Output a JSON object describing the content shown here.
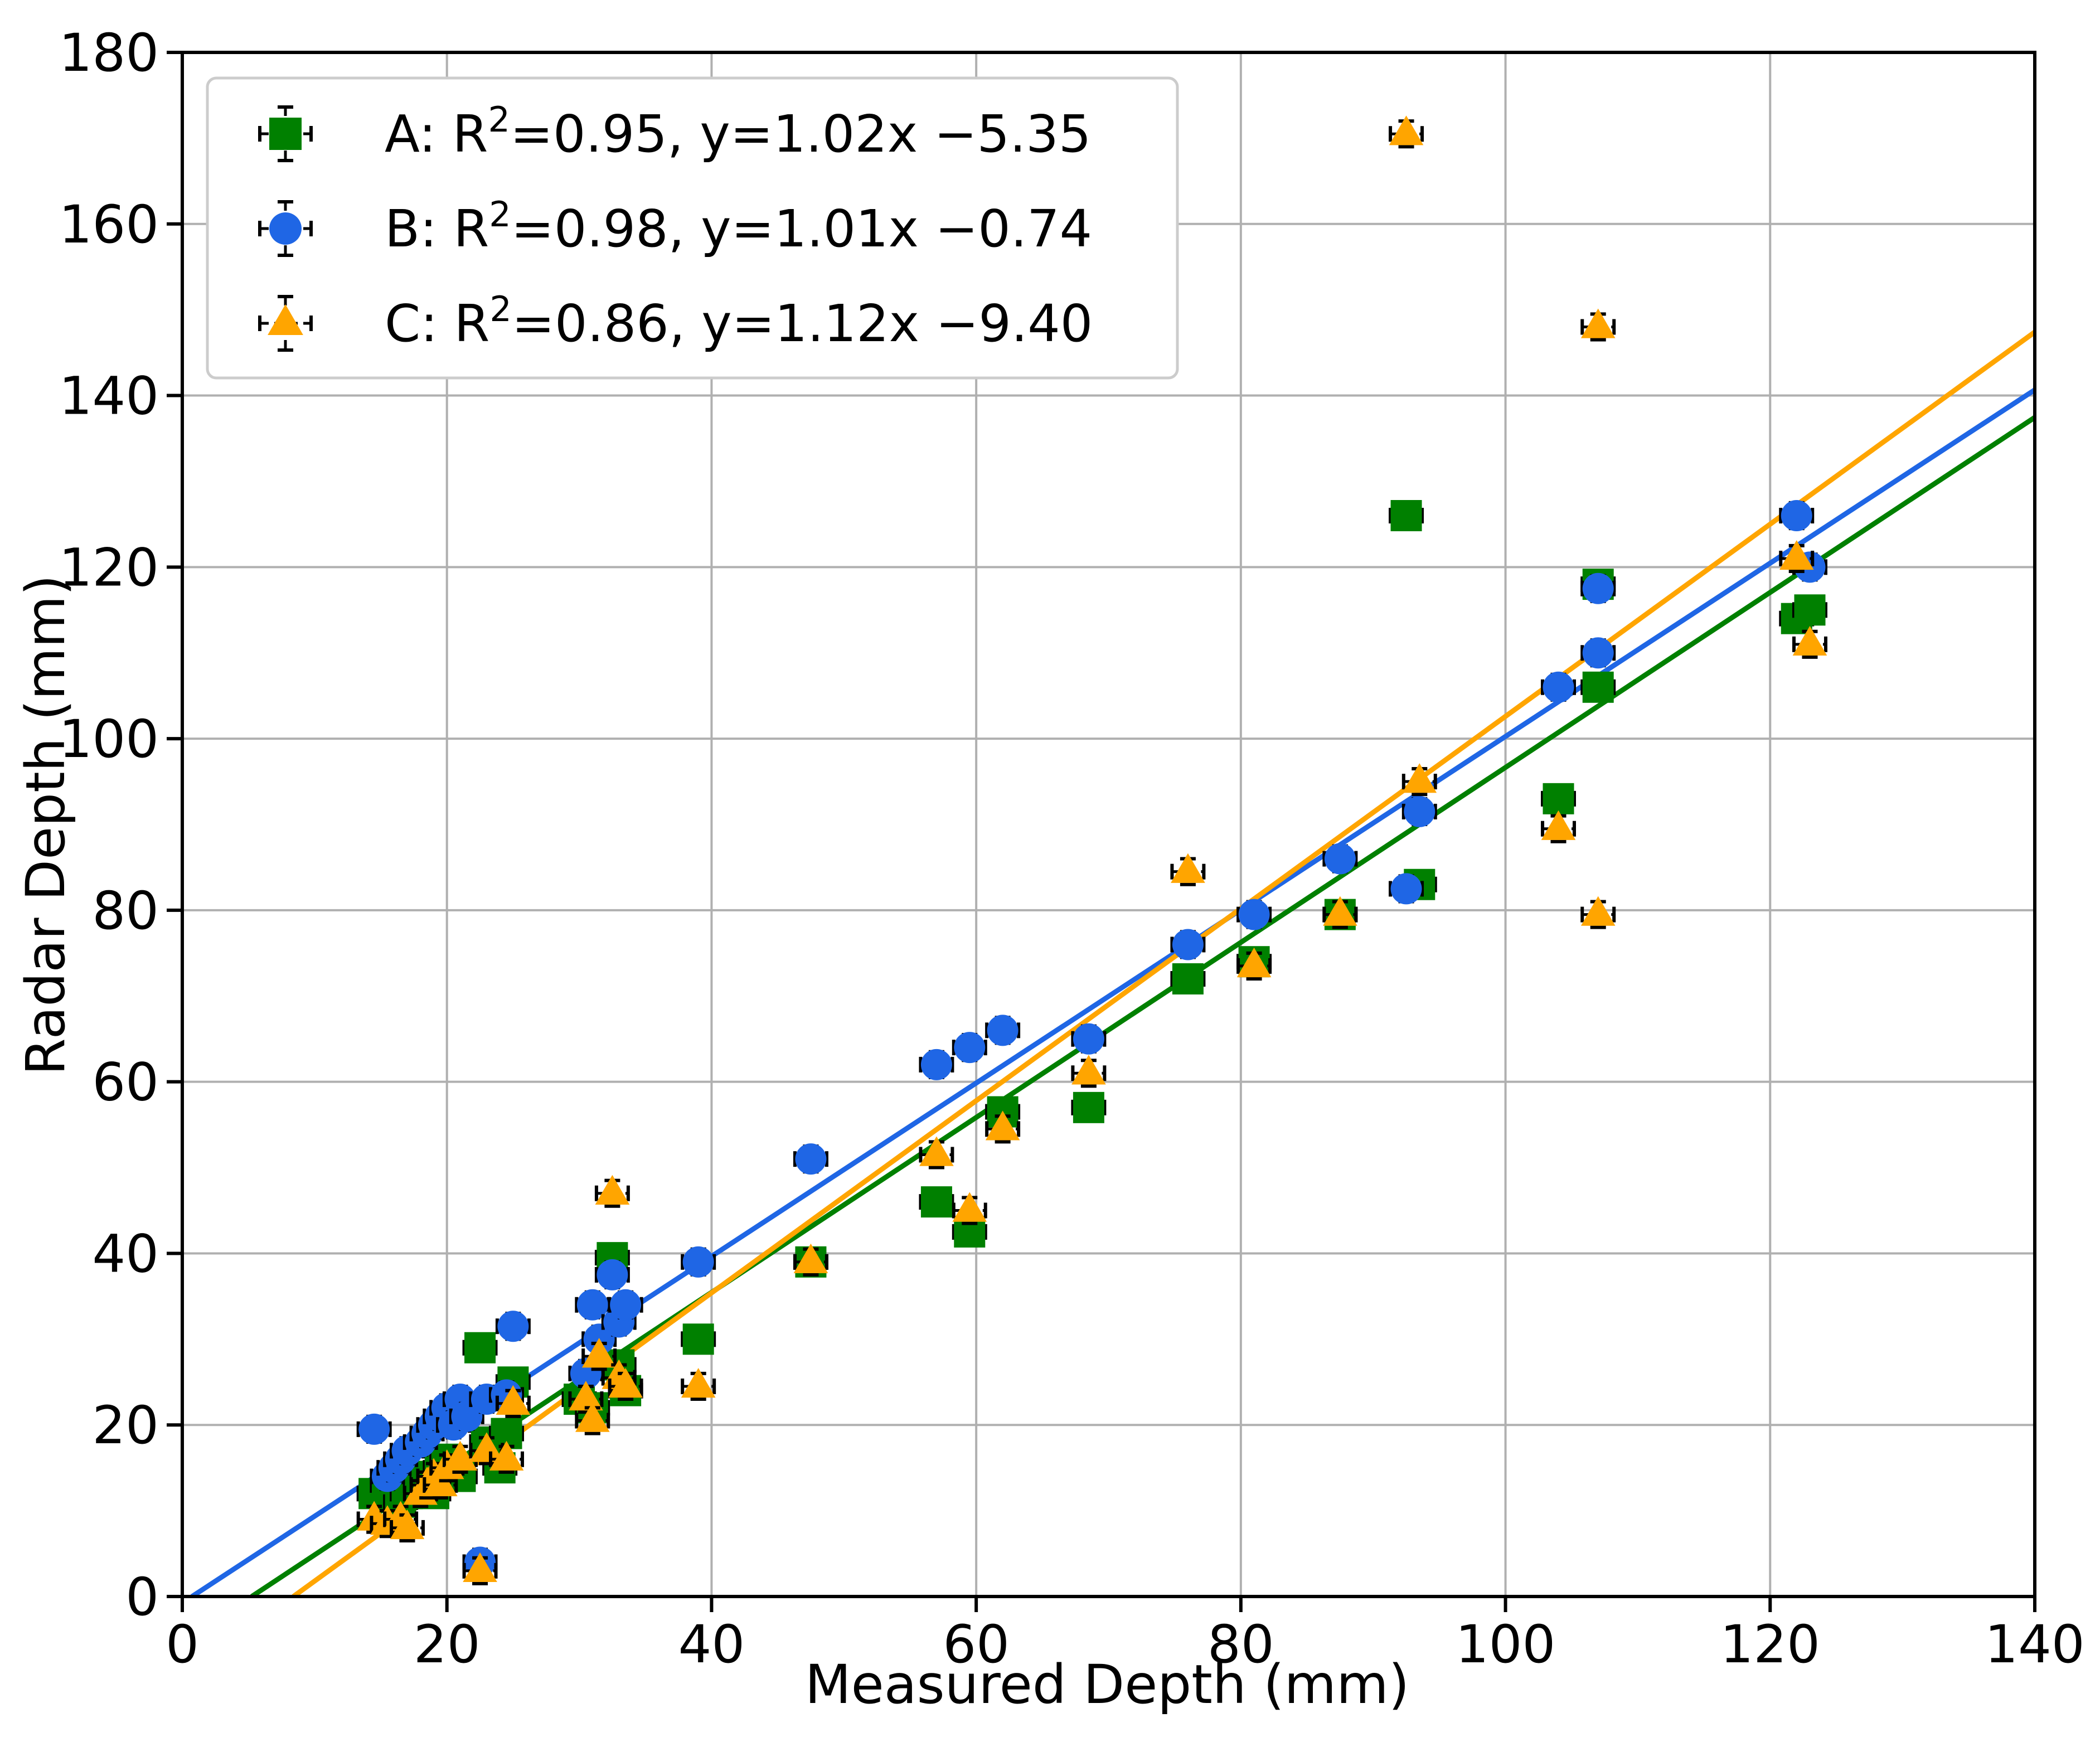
{
  "chart_data": {
    "type": "scatter",
    "title": "",
    "xlabel": "Measured Depth (mm)",
    "ylabel": "Radar Depth (mm)",
    "xlim": [
      0,
      140
    ],
    "ylim": [
      0,
      180
    ],
    "xticks": [
      0,
      20,
      40,
      60,
      80,
      100,
      120,
      140
    ],
    "yticks": [
      0,
      20,
      40,
      60,
      80,
      100,
      120,
      140,
      160,
      180
    ],
    "grid": true,
    "legend_position": "top-left",
    "error_bars": {
      "x": 1.2,
      "y": 1.5
    },
    "series": [
      {
        "name": "A",
        "marker": "square",
        "color": "#008000",
        "legend_label": {
          "prefix": "A: R",
          "sup": "2",
          "suffix": "=0.95, y=1.02x −5.35"
        },
        "fit": {
          "slope": 1.02,
          "intercept": -5.35
        },
        "points": [
          [
            14.5,
            12
          ],
          [
            15.5,
            13
          ],
          [
            16.5,
            11
          ],
          [
            17,
            12
          ],
          [
            18,
            13
          ],
          [
            18.5,
            14
          ],
          [
            19,
            12
          ],
          [
            19.5,
            15
          ],
          [
            20,
            16
          ],
          [
            21,
            14
          ],
          [
            22.5,
            29
          ],
          [
            23,
            18
          ],
          [
            24,
            15
          ],
          [
            24.5,
            19
          ],
          [
            25,
            25
          ],
          [
            30,
            23
          ],
          [
            31,
            22
          ],
          [
            32.5,
            39.5
          ],
          [
            33,
            27
          ],
          [
            33.5,
            24
          ],
          [
            39,
            30
          ],
          [
            47.5,
            39
          ],
          [
            57,
            46
          ],
          [
            59.5,
            42.5
          ],
          [
            62,
            56.5
          ],
          [
            68.5,
            57
          ],
          [
            76,
            72
          ],
          [
            81,
            74
          ],
          [
            87.5,
            79.5
          ],
          [
            92.5,
            126
          ],
          [
            93.5,
            83
          ],
          [
            104,
            93
          ],
          [
            107,
            118
          ],
          [
            107,
            106
          ],
          [
            122,
            114
          ],
          [
            123,
            115
          ]
        ]
      },
      {
        "name": "B",
        "marker": "circle",
        "color": "#1f66e5",
        "legend_label": {
          "prefix": "B: R",
          "sup": "2",
          "suffix": "=0.98, y=1.01x −0.74"
        },
        "fit": {
          "slope": 1.01,
          "intercept": -0.74
        },
        "points": [
          [
            14.5,
            19.5
          ],
          [
            15.5,
            14
          ],
          [
            16,
            15
          ],
          [
            16.5,
            16
          ],
          [
            17,
            17
          ],
          [
            18,
            18
          ],
          [
            18.5,
            19
          ],
          [
            19,
            20
          ],
          [
            19.5,
            21
          ],
          [
            20,
            22
          ],
          [
            20.5,
            20
          ],
          [
            21,
            23
          ],
          [
            21.5,
            21
          ],
          [
            22.5,
            4
          ],
          [
            23,
            23
          ],
          [
            24.5,
            23.5
          ],
          [
            25,
            31.5
          ],
          [
            30.5,
            26
          ],
          [
            31,
            34
          ],
          [
            31.5,
            30
          ],
          [
            32.5,
            37.5
          ],
          [
            33,
            32
          ],
          [
            33.5,
            34
          ],
          [
            39,
            39
          ],
          [
            47.5,
            51
          ],
          [
            57,
            62
          ],
          [
            59.5,
            64
          ],
          [
            62,
            66
          ],
          [
            68.5,
            65
          ],
          [
            76,
            76
          ],
          [
            81,
            79.5
          ],
          [
            87.5,
            86
          ],
          [
            92.5,
            82.5
          ],
          [
            93.5,
            91.5
          ],
          [
            104,
            106
          ],
          [
            107,
            117.5
          ],
          [
            107,
            110
          ],
          [
            122,
            126
          ],
          [
            123,
            120
          ]
        ]
      },
      {
        "name": "C",
        "marker": "triangle",
        "color": "#ffa500",
        "legend_label": {
          "prefix": "C: R",
          "sup": "2",
          "suffix": "=0.86, y=1.12x −9.40"
        },
        "fit": {
          "slope": 1.12,
          "intercept": -9.4
        },
        "points": [
          [
            14.5,
            9
          ],
          [
            15.5,
            8.5
          ],
          [
            16.5,
            9
          ],
          [
            17,
            8
          ],
          [
            18,
            12
          ],
          [
            18.5,
            13
          ],
          [
            19,
            14
          ],
          [
            19.5,
            13
          ],
          [
            20,
            15
          ],
          [
            21,
            16
          ],
          [
            22.5,
            3
          ],
          [
            23,
            17
          ],
          [
            24.5,
            16
          ],
          [
            25,
            22.5
          ],
          [
            30.5,
            23
          ],
          [
            31,
            20.5
          ],
          [
            31.5,
            28
          ],
          [
            32.5,
            47
          ],
          [
            33,
            25.5
          ],
          [
            33.5,
            24.5
          ],
          [
            39,
            24.5
          ],
          [
            47.5,
            39
          ],
          [
            57,
            51.5
          ],
          [
            59.5,
            45
          ],
          [
            62,
            54.5
          ],
          [
            68.5,
            61
          ],
          [
            76,
            84.5
          ],
          [
            81,
            73.5
          ],
          [
            87.5,
            79.5
          ],
          [
            92.5,
            170.5
          ],
          [
            93.5,
            95
          ],
          [
            104,
            89.5
          ],
          [
            107,
            148
          ],
          [
            107,
            79.5
          ],
          [
            122,
            121
          ],
          [
            123,
            111
          ]
        ]
      }
    ]
  }
}
